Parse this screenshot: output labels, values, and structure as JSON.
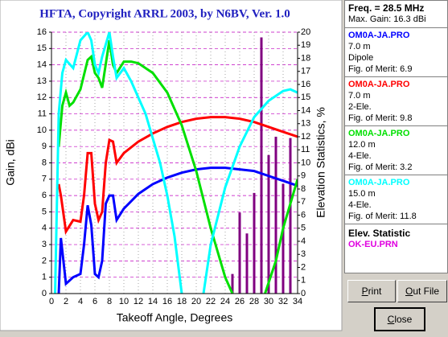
{
  "chart_data": {
    "type": "line",
    "title": "HFTA, Copyright ARRL 2003, by N6BV, Ver. 1.0",
    "x_label": "Takeoff Angle, Degrees",
    "y_label": "Gain, dBi",
    "y2_label": "Elevation Statistics, %",
    "xlim": [
      0,
      34
    ],
    "xticks": [
      0,
      2,
      4,
      6,
      8,
      10,
      12,
      14,
      16,
      18,
      20,
      22,
      24,
      26,
      28,
      30,
      32,
      34
    ],
    "ylim": [
      0,
      16
    ],
    "yticks": [
      0,
      1,
      2,
      3,
      4,
      5,
      6,
      7,
      8,
      9,
      10,
      11,
      12,
      13,
      14,
      15,
      16
    ],
    "y2lim": [
      0,
      20
    ],
    "y2ticks": [
      0,
      1,
      2,
      3,
      4,
      5,
      6,
      7,
      8,
      9,
      10,
      11,
      12,
      13,
      14,
      15,
      16,
      17,
      18,
      19,
      20
    ],
    "grid": true,
    "series": [
      {
        "name": "OM0A-JA.PRO",
        "height": "7.0 m",
        "antenna": "Dipole",
        "merit": "Fig. of Merit:  6.9",
        "color": "#0000ff",
        "x": [
          1,
          1.3,
          2,
          3,
          4,
          4.5,
          5,
          5.5,
          6,
          6.5,
          7,
          7.5,
          8,
          8.5,
          9,
          10,
          12,
          14,
          16,
          18,
          20,
          22,
          24,
          26,
          28,
          30,
          32,
          34
        ],
        "values": [
          0,
          3.4,
          0.6,
          1.0,
          1.2,
          3.0,
          5.4,
          4.2,
          1.2,
          1.0,
          2.0,
          5.5,
          6.0,
          6.0,
          4.5,
          5.2,
          6.1,
          6.7,
          7.1,
          7.4,
          7.6,
          7.7,
          7.7,
          7.6,
          7.5,
          7.2,
          6.9,
          6.6
        ]
      },
      {
        "name": "OM0A-JA.PRO",
        "height": "7.0 m",
        "antenna": "2-Ele.",
        "merit": "Fig. of Merit:  9.8",
        "color": "#ff0000",
        "x": [
          1,
          1.3,
          2,
          3,
          4,
          4.5,
          5,
          5.5,
          6,
          6.5,
          7,
          7.5,
          8,
          8.5,
          9,
          10,
          12,
          14,
          16,
          18,
          20,
          22,
          24,
          26,
          28,
          30,
          32,
          34
        ],
        "values": [
          6.7,
          6.0,
          3.8,
          4.5,
          4.4,
          6.0,
          8.6,
          8.6,
          5.5,
          4.5,
          5.0,
          8.0,
          9.4,
          9.3,
          8.0,
          8.6,
          9.3,
          9.8,
          10.2,
          10.5,
          10.7,
          10.8,
          10.8,
          10.7,
          10.5,
          10.2,
          9.9,
          9.6
        ]
      },
      {
        "name": "OM0A-JA.PRO",
        "height": "12.0 m",
        "antenna": "4-Ele.",
        "merit": "Fig. of Merit:  3.2",
        "color": "#00e000",
        "x": [
          1,
          1.5,
          2,
          2.5,
          3,
          4,
          5,
          5.5,
          6,
          6.5,
          7,
          8,
          8.5,
          9,
          10,
          11,
          12,
          14,
          16,
          18,
          20,
          22,
          24,
          25,
          27,
          29.5,
          31,
          32,
          34
        ],
        "values": [
          9,
          11.5,
          12.3,
          11.5,
          11.7,
          12.5,
          14.3,
          14.5,
          13.5,
          13.2,
          12.6,
          15.5,
          14,
          13.5,
          14.2,
          14.2,
          14.1,
          13.5,
          12.3,
          10.3,
          7.5,
          4,
          1,
          0,
          null,
          0,
          2,
          4,
          7
        ]
      },
      {
        "name": "OM0A-JA.PRO",
        "height": "15.0 m",
        "antenna": "4-Ele.",
        "merit": "Fig. of Merit:  11.8",
        "color": "#00ffff",
        "x": [
          0.5,
          1,
          1.5,
          2,
          3,
          4,
          5,
          5.5,
          6,
          6.5,
          7,
          8,
          8.5,
          9,
          10,
          11,
          12,
          13,
          14,
          15,
          16,
          17,
          18,
          19.5,
          21,
          22,
          24,
          26,
          28,
          30,
          32,
          33,
          34
        ],
        "values": [
          0,
          11,
          13.5,
          14.3,
          13.8,
          15.5,
          16,
          15.5,
          14,
          13.5,
          14.5,
          16,
          14.5,
          13.2,
          13.8,
          13,
          12,
          11,
          9.5,
          8,
          6,
          3.5,
          0,
          null,
          0,
          3,
          6.5,
          9,
          10.8,
          11.8,
          12.4,
          12.5,
          12.3
        ]
      }
    ],
    "bars": {
      "axis": "y2",
      "color": "#800080",
      "x": [
        25,
        26,
        27,
        28,
        29,
        30,
        31,
        32,
        33
      ],
      "values": [
        1.5,
        6.2,
        4.6,
        7.7,
        19.6,
        10.6,
        12.0,
        8.4,
        11.9
      ]
    }
  },
  "panel": {
    "freq": "Freq. = 28.5 MHz",
    "max_gain": "Max. Gain: 16.3 dBi",
    "elev_title": "Elev. Statistic",
    "elev_file": "OK-EU.PRN"
  },
  "buttons": {
    "print": "Print",
    "out_file": "Out File",
    "close": "Close"
  }
}
